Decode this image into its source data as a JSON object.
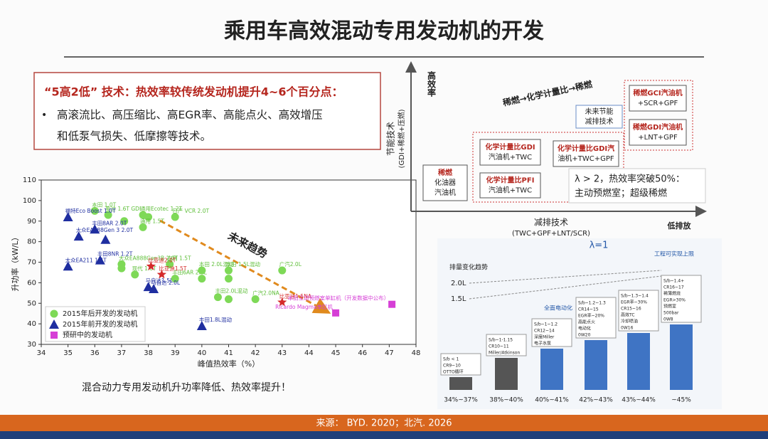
{
  "header": {
    "title": "乘用车高效混动专用发动机的开发"
  },
  "callout": {
    "heading": "“5高2低” 技术：热效率较传统发动机提升4~6个百分点：",
    "bullet_lines": [
      "高滚流比、高压缩比、高EGR率、高能点火、高效增压",
      "和低泵气损失、低摩擦等技术。"
    ]
  },
  "chart_data": {
    "type": "scatter",
    "x_label": "峰值热效率（%）",
    "y_label": "升功率（kW/L）",
    "xlim": [
      34,
      48
    ],
    "xticks": [
      34,
      35,
      36,
      37,
      38,
      39,
      40,
      41,
      42,
      43,
      44,
      45,
      46,
      47,
      48
    ],
    "ylim": [
      30,
      110
    ],
    "yticks": [
      30,
      40,
      50,
      60,
      70,
      80,
      90,
      100,
      110
    ],
    "grid": false,
    "legend": "lower left",
    "annotation": "未来趋势",
    "series": [
      {
        "name": "2015年后开发的发动机",
        "color": "#7ed957",
        "marker": "circle",
        "x": [
          36.0,
          36.5,
          37.8,
          38.0,
          39.0,
          37.1,
          37.8,
          37.0,
          37.0,
          37.5,
          38.8,
          39.0,
          40.0,
          40.0,
          41.0,
          41.0,
          43.0,
          40.6,
          41.0,
          42.0
        ],
        "values": [
          95,
          93,
          93,
          92,
          92,
          90,
          87,
          69,
          67,
          64,
          69,
          62,
          66,
          62,
          66,
          62,
          66,
          53,
          52,
          52
        ],
        "point_labels": [
          "本田 1.0T",
          "奥迪 1.6T GDI",
          "通用Ecotec 1.2T",
          null,
          "日产 VCR 2.0T",
          null,
          "通用 1.5T",
          "大众EA888Gen3B 2.0T",
          null,
          "现代 1.6T",
          "吉利 1.5T",
          "丰田6AR 2.0L",
          "本田 2.0L混动",
          null,
          "本田 1.5L混动",
          null,
          "广汽2.0L",
          "丰田2.0L混动",
          null,
          "广汽2.0NA"
        ]
      },
      {
        "name": "2015年前开发的发动机",
        "color": "#1f2ea0",
        "marker": "triangle",
        "x": [
          35.0,
          36.0,
          35.4,
          36.4,
          36.2,
          35.0,
          38.0,
          38.2,
          40.0
        ],
        "values": [
          92,
          86,
          82.6,
          81,
          71,
          68,
          58,
          57,
          39
        ],
        "point_labels": [
          "福特Eco Boost 1.0T",
          "丰田8AR 2.0T",
          "大众EA888Gen 3 2.0T",
          null,
          "丰田8NR 1.2T",
          "大众EA211 1.4T",
          "马自达1.5L",
          "马自达 2.0L",
          "丰田1.8L混动"
        ]
      },
      {
        "color": "#d42a2a",
        "marker": "star",
        "x": [
          38.1,
          38.5,
          43.0
        ],
        "values": [
          68,
          64,
          50.5
        ],
        "point_labels": [
          "比亚迪2.0T",
          "比亚迪1.5T",
          "比亚迪1.5NA"
        ]
      },
      {
        "name": "预研中的发动机",
        "color": "#d63fd6",
        "marker": "square",
        "x": [
          45.0,
          47.1
        ],
        "values": [
          45.3,
          49.5
        ],
        "point_labels": [
          "Ricardo Magma单缸机",
          "本田主动预燃室单缸机（开发数据中公布）"
        ]
      }
    ]
  },
  "chart_caption": "混合动力专用发动机升功率降低、热效率提升！",
  "diagram": {
    "y_axis_label": "节能技术",
    "y_axis_sublabel": "(GDI+稀燃+压燃)",
    "y_axis_end": "高效率",
    "x_axis_label": "减排技术",
    "x_axis_sublabel": "(TWC+GPF+LNT/SCR)",
    "x_axis_end": "低排放",
    "trend": "稀燃→化学计量比→稀燃",
    "nodes": [
      {
        "lines": [
          "稀燃",
          "化油器",
          "汽油机"
        ]
      },
      {
        "lines": [
          "化学计量比PFI",
          "汽油机+TWC"
        ]
      },
      {
        "lines": [
          "化学计量比GDI",
          "汽油机+TWC"
        ]
      },
      {
        "lines": [
          "化学计量比GDI汽",
          "油机+TWC+GPF"
        ]
      },
      {
        "lines": [
          "未来节能",
          "减排技术"
        ]
      },
      {
        "lines": [
          "稀燃GDI汽油机",
          "+LNT+GPF"
        ]
      },
      {
        "lines": [
          "稀燃GCI汽油机",
          "+SCR+GPF"
        ]
      }
    ],
    "note": [
      "λ > 2，热效率突破50%：",
      "主动预燃室；超级稀燃"
    ]
  },
  "roadmap": {
    "lambda": "λ=1",
    "limit": "工程可实现上限",
    "trend": "排量变化趋势",
    "electrification": "全面电动化",
    "displacements": [
      "2.0L",
      "1.5L"
    ],
    "columns": [
      {
        "tech": [
          "S/b < 1",
          "CR9~10",
          "OTTO循环"
        ],
        "efficiency": "34%~37%"
      },
      {
        "tech": [
          "S/b~1-1.15",
          "CR10~11",
          "Miller/Atkinson"
        ],
        "efficiency": "38%~40%"
      },
      {
        "tech": [
          "S/b~1~1.2",
          "CR12~14",
          "深度Miller",
          "电子水泵"
        ],
        "efficiency": "40%~41%"
      },
      {
        "tech": [
          "S/b~1.2~1.3",
          "CR14~15",
          "EGR率~20%",
          "高能点火",
          "电动化",
          "0W20"
        ],
        "efficiency": "42%~43%"
      },
      {
        "tech": [
          "S/b~1.3~1.4",
          "EGR率~30%",
          "CR15~16",
          "高效TC",
          "冷却喷油",
          "0W16"
        ],
        "efficiency": "43%~44%"
      },
      {
        "tech": [
          "S/b~1.4+",
          "CR16~17",
          "稀薄燃烧",
          "EGR>30%",
          "预燃室",
          "500bar",
          "0W8"
        ],
        "efficiency": "~45%"
      }
    ]
  },
  "footer": {
    "source": "来源： BYD. 2020；北汽. 2026"
  }
}
